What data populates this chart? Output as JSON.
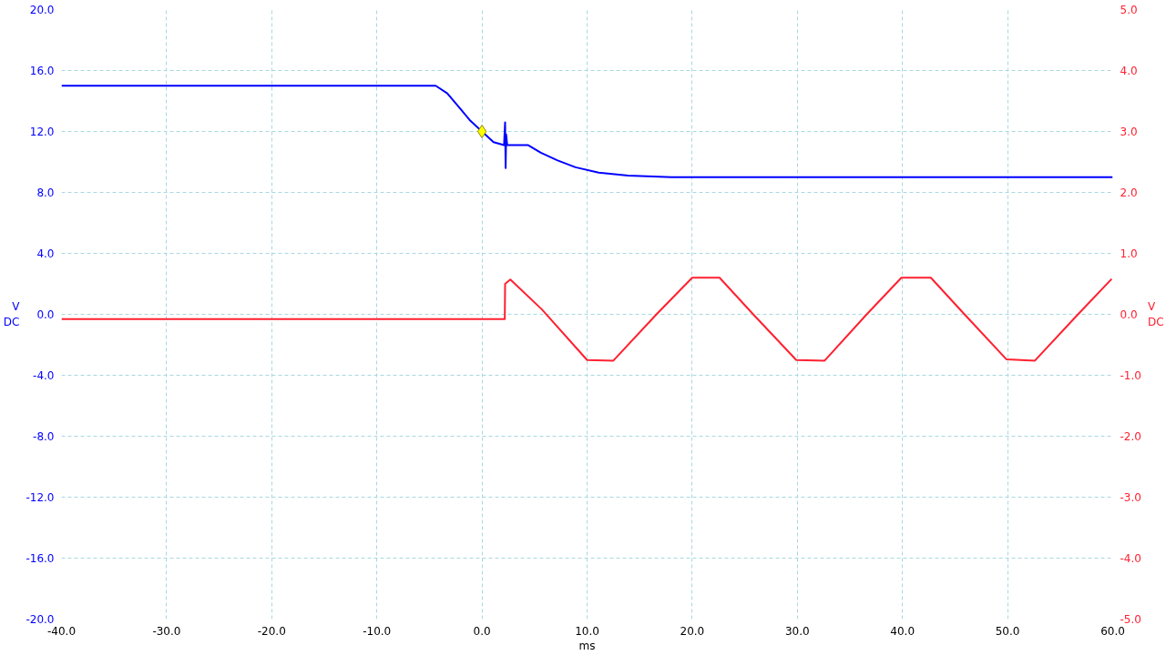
{
  "chart_data": {
    "type": "line",
    "xlabel": "ms",
    "ylabel": "V DC",
    "y2label": "V DC",
    "xlim": [
      -40,
      60
    ],
    "ylim": [
      -20,
      20
    ],
    "y2lim": [
      -5,
      5
    ],
    "xticks": [
      {
        "value": -40,
        "label": "-40.0"
      },
      {
        "value": -30,
        "label": "-30.0"
      },
      {
        "value": -20,
        "label": "-20.0"
      },
      {
        "value": -10,
        "label": "-10.0"
      },
      {
        "value": 0,
        "label": "0.0"
      },
      {
        "value": 10,
        "label": "10.0"
      },
      {
        "value": 20,
        "label": "20.0"
      },
      {
        "value": 30,
        "label": "30.0"
      },
      {
        "value": 40,
        "label": "40.0"
      },
      {
        "value": 50,
        "label": "50.0"
      },
      {
        "value": 60,
        "label": "60.0"
      }
    ],
    "yticks": [
      {
        "value": -20,
        "label": "-20.0"
      },
      {
        "value": -16,
        "label": "-16.0"
      },
      {
        "value": -12,
        "label": "-12.0"
      },
      {
        "value": -8,
        "label": "-8.0"
      },
      {
        "value": -4,
        "label": "-4.0"
      },
      {
        "value": 0,
        "label": "0.0"
      },
      {
        "value": 4,
        "label": "4.0"
      },
      {
        "value": 8,
        "label": "8.0"
      },
      {
        "value": 12,
        "label": "12.0"
      },
      {
        "value": 16,
        "label": "16.0"
      },
      {
        "value": 20,
        "label": "20.0"
      }
    ],
    "y2ticks": [
      {
        "value": -5,
        "label": "-5.0"
      },
      {
        "value": -4,
        "label": "-4.0"
      },
      {
        "value": -3,
        "label": "-3.0"
      },
      {
        "value": -2,
        "label": "-2.0"
      },
      {
        "value": -1,
        "label": "-1.0"
      },
      {
        "value": 0,
        "label": "0.0"
      },
      {
        "value": 1,
        "label": "1.0"
      },
      {
        "value": 2,
        "label": "2.0"
      },
      {
        "value": 3,
        "label": "3.0"
      },
      {
        "value": 4,
        "label": "4.0"
      },
      {
        "value": 5,
        "label": "5.0"
      }
    ],
    "grid": true,
    "marker": "none",
    "line_style": "solid",
    "series": [
      {
        "color": "#0000ff",
        "x": [
          -40,
          -4.4,
          -3.3,
          -2.2,
          -1.1,
          0,
          1.1,
          2.1,
          2.2,
          2.25,
          2.3,
          2.4,
          3.2,
          4.4,
          5.6,
          7.2,
          8.9,
          11.1,
          13.9,
          18.0,
          60
        ],
        "values": [
          15.0,
          15.0,
          14.5,
          13.6,
          12.7,
          12.0,
          11.3,
          11.1,
          12.6,
          9.6,
          11.8,
          11.1,
          11.1,
          11.1,
          10.6,
          10.1,
          9.65,
          9.3,
          9.1,
          9.0,
          9.0
        ]
      },
      {
        "color": "#ff2030",
        "axis": "y2",
        "x": [
          -40,
          2.17,
          2.2,
          2.7,
          5.7,
          10.0,
          12.5,
          16.6,
          20.0,
          22.6,
          25.8,
          29.9,
          32.6,
          36.6,
          39.9,
          42.7,
          45.9,
          49.9,
          52.6,
          56.7,
          59.9
        ],
        "values": [
          -0.08,
          -0.08,
          0.5,
          0.57,
          0.08,
          -0.75,
          -0.76,
          0.0,
          0.6,
          0.6,
          0.0,
          -0.75,
          -0.76,
          0.0,
          0.6,
          0.6,
          0.0,
          -0.74,
          -0.76,
          0.0,
          0.58
        ]
      },
      {
        "type": "scatter",
        "marker": "diamond",
        "color": "#ffff00",
        "x": [
          0
        ],
        "values": [
          12.0
        ]
      }
    ]
  }
}
